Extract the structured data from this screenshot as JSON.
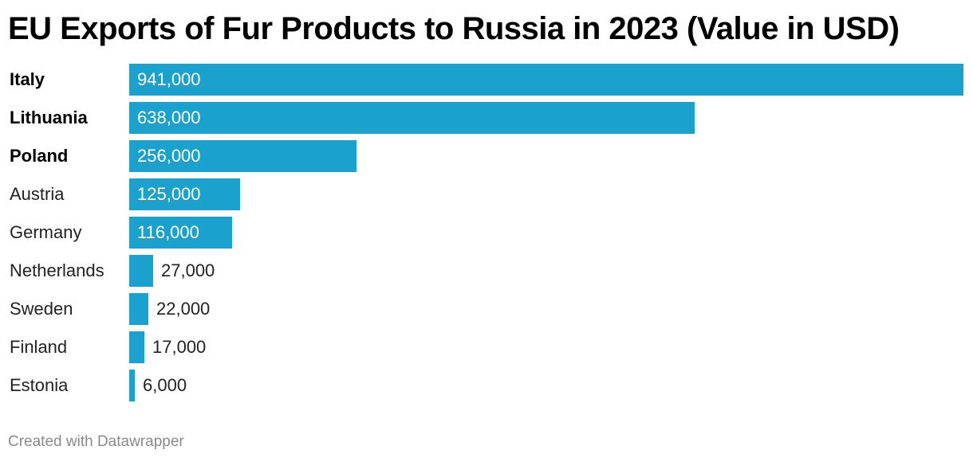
{
  "title": "EU Exports of Fur Products to Russia in 2023 (Value in USD)",
  "footer": "Created with Datawrapper",
  "colors": {
    "bar": "#1aa1ce"
  },
  "chart_data": {
    "type": "bar",
    "orientation": "horizontal",
    "title": "EU Exports of Fur Products to Russia in 2023 (Value in USD)",
    "categories": [
      "Italy",
      "Lithuania",
      "Poland",
      "Austria",
      "Germany",
      "Netherlands",
      "Sweden",
      "Finland",
      "Estonia"
    ],
    "values": [
      941000,
      638000,
      256000,
      125000,
      116000,
      27000,
      22000,
      17000,
      6000
    ],
    "value_labels": [
      "941,000",
      "638,000",
      "256,000",
      "125,000",
      "116,000",
      "27,000",
      "22,000",
      "17,000",
      "6,000"
    ],
    "bold_categories": [
      "Italy",
      "Lithuania",
      "Poland"
    ],
    "xlim": [
      0,
      941000
    ],
    "grid": false,
    "legend": "none"
  }
}
